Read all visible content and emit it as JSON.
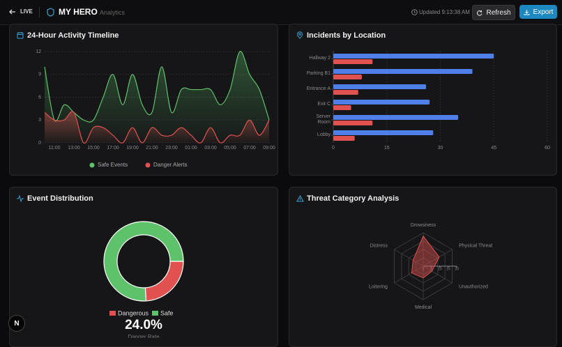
{
  "header": {
    "live": "LIVE",
    "title": "MY HERO",
    "subtitle": "Analytics",
    "updated": "Updated 9:13:38 AM",
    "refresh": "Refresh",
    "export": "Export"
  },
  "chart_data": [
    {
      "type": "line",
      "title": "24-Hour Activity Timeline",
      "categories": [
        null,
        "11:00",
        null,
        "13:00",
        null,
        "15:00",
        null,
        "17:00",
        null,
        "19:00",
        null,
        "21:00",
        null,
        "23:00",
        null,
        "01:00",
        null,
        "03:00",
        null,
        "05:00",
        null,
        "07:00",
        null,
        "09:00"
      ],
      "ylim": [
        0,
        12
      ],
      "yticks": [
        0,
        3,
        6,
        9,
        12
      ],
      "grid": true,
      "legend": "bottom",
      "series": [
        {
          "name": "Safe Events",
          "color": "#5ec26a",
          "values": [
            10,
            3,
            5,
            4,
            3,
            3,
            6,
            9,
            5,
            9,
            5,
            4,
            10,
            4,
            7,
            7,
            7,
            7,
            5,
            7,
            12,
            9,
            7,
            3
          ]
        },
        {
          "name": "Danger Alerts",
          "color": "#e0514f",
          "values": [
            4,
            3,
            3,
            4,
            0,
            2,
            2,
            1,
            0,
            2,
            0,
            2,
            1,
            1,
            2,
            1,
            0,
            2,
            0,
            1,
            1,
            3,
            1,
            3
          ]
        }
      ]
    },
    {
      "type": "hbar",
      "title": "Incidents by Location",
      "categories": [
        "Hallway 2",
        "Parking B1",
        "Entrance A",
        "Exit C",
        "Server Room",
        "Lobby"
      ],
      "xlim": [
        0,
        60
      ],
      "xticks": [
        0,
        15,
        30,
        45,
        60
      ],
      "grid": true,
      "series": [
        {
          "color": "#4f7fe8",
          "values": [
            45,
            39,
            26,
            27,
            35,
            28
          ]
        },
        {
          "color": "#e0514f",
          "values": [
            11,
            8,
            7,
            5,
            11,
            6
          ]
        }
      ]
    },
    {
      "type": "donut",
      "title": "Event Distribution",
      "categories": [
        "Dangerous",
        "Safe"
      ],
      "values": [
        24,
        76
      ],
      "colors": [
        "#e0514f",
        "#5ec26a"
      ],
      "center_label": "24.0%",
      "center_caption": "Danger Rate"
    },
    {
      "type": "radar",
      "title": "Threat Category Analysis",
      "categories": [
        "Drowsiness",
        "Physical Threat",
        "Unauthorized",
        "Medical",
        "Loitering",
        "Distress"
      ],
      "values": [
        18,
        11,
        6,
        7,
        8,
        7
      ],
      "rlim": [
        0,
        20
      ],
      "rticks": [
        0,
        5,
        10,
        15,
        20
      ],
      "color": "#e0514f"
    }
  ]
}
